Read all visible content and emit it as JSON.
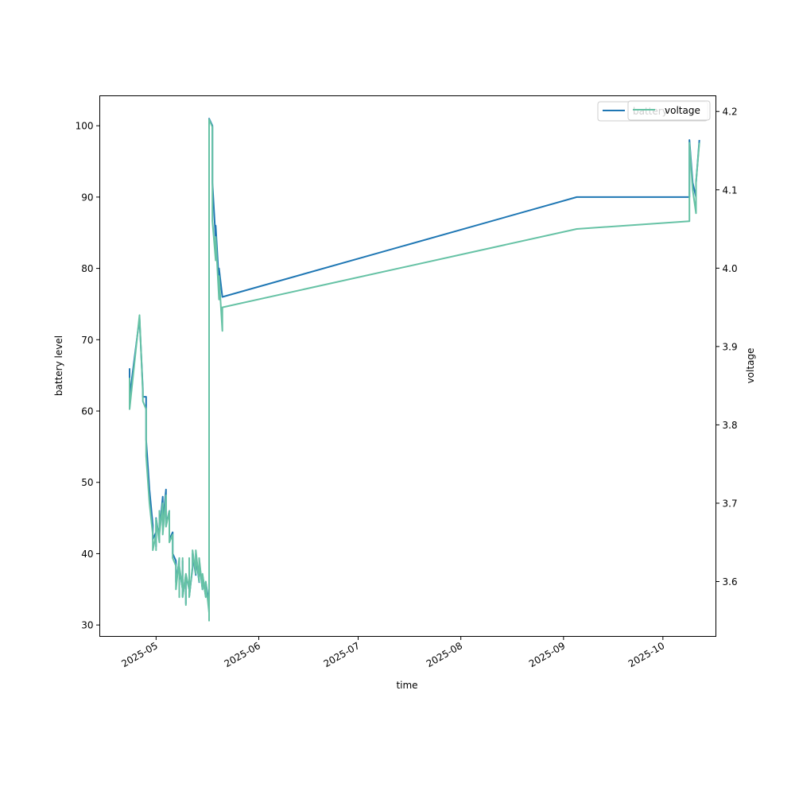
{
  "chart_data": {
    "type": "line",
    "title": "",
    "xlabel": "time",
    "ylabel_left": "battery level",
    "ylabel_right": "voltage",
    "ylim_left": [
      28.4,
      104.2
    ],
    "ylim_right": [
      3.53,
      4.22
    ],
    "yticks_left": [
      30,
      40,
      50,
      60,
      70,
      80,
      90,
      100
    ],
    "yticks_right": [
      "3.6",
      "3.7",
      "3.8",
      "3.9",
      "4.0",
      "4.1",
      "4.2"
    ],
    "xlim": [
      "2025-04-14",
      "2025-10-17"
    ],
    "xticks": [
      {
        "date": "2025-05-01",
        "label": "2025-05"
      },
      {
        "date": "2025-06-01",
        "label": "2025-06"
      },
      {
        "date": "2025-07-01",
        "label": "2025-07"
      },
      {
        "date": "2025-08-01",
        "label": "2025-08"
      },
      {
        "date": "2025-09-01",
        "label": "2025-09"
      },
      {
        "date": "2025-10-01",
        "label": "2025-10"
      }
    ],
    "grid": false,
    "legend_placement": "top-right",
    "series": [
      {
        "name": "battery",
        "axis": "left",
        "color": "#1f77b4",
        "points": [
          [
            "2025-04-23",
            66
          ],
          [
            "2025-04-23",
            62
          ],
          [
            "2025-04-26",
            73
          ],
          [
            "2025-04-27",
            63
          ],
          [
            "2025-04-27",
            62
          ],
          [
            "2025-04-28",
            62
          ],
          [
            "2025-04-28",
            56
          ],
          [
            "2025-04-29",
            49
          ],
          [
            "2025-04-30",
            44
          ],
          [
            "2025-04-30",
            42
          ],
          [
            "2025-05-01",
            43
          ],
          [
            "2025-05-01",
            41
          ],
          [
            "2025-05-01",
            45
          ],
          [
            "2025-05-02",
            42
          ],
          [
            "2025-05-02",
            46
          ],
          [
            "2025-05-02",
            43
          ],
          [
            "2025-05-03",
            48
          ],
          [
            "2025-05-03",
            44
          ],
          [
            "2025-05-04",
            49
          ],
          [
            "2025-05-04",
            44
          ],
          [
            "2025-05-05",
            46
          ],
          [
            "2025-05-05",
            42
          ],
          [
            "2025-05-06",
            43
          ],
          [
            "2025-05-06",
            40
          ],
          [
            "2025-05-07",
            39
          ],
          [
            "2025-05-07",
            36
          ],
          [
            "2025-05-08",
            39
          ],
          [
            "2025-05-08",
            34
          ],
          [
            "2025-05-08",
            38
          ],
          [
            "2025-05-09",
            35
          ],
          [
            "2025-05-09",
            39
          ],
          [
            "2025-05-09",
            34
          ],
          [
            "2025-05-10",
            37
          ],
          [
            "2025-05-10",
            33
          ],
          [
            "2025-05-10",
            37
          ],
          [
            "2025-05-11",
            35
          ],
          [
            "2025-05-11",
            39
          ],
          [
            "2025-05-11",
            34
          ],
          [
            "2025-05-12",
            38
          ],
          [
            "2025-05-12",
            40
          ],
          [
            "2025-05-13",
            37
          ],
          [
            "2025-05-13",
            40
          ],
          [
            "2025-05-14",
            36
          ],
          [
            "2025-05-14",
            39
          ],
          [
            "2025-05-15",
            35
          ],
          [
            "2025-05-15",
            37
          ],
          [
            "2025-05-16",
            34
          ],
          [
            "2025-05-16",
            36
          ],
          [
            "2025-05-17",
            33
          ],
          [
            "2025-05-17",
            32
          ],
          [
            "2025-05-17",
            101
          ],
          [
            "2025-05-18",
            100
          ],
          [
            "2025-05-18",
            92
          ],
          [
            "2025-05-19",
            84
          ],
          [
            "2025-05-19",
            86
          ],
          [
            "2025-05-20",
            78
          ],
          [
            "2025-05-20",
            80
          ],
          [
            "2025-05-21",
            76
          ],
          [
            "2025-09-05",
            90
          ],
          [
            "2025-10-09",
            90
          ],
          [
            "2025-10-09",
            98
          ],
          [
            "2025-10-10",
            92
          ],
          [
            "2025-10-11",
            90
          ],
          [
            "2025-10-11",
            92
          ],
          [
            "2025-10-12",
            98
          ]
        ]
      },
      {
        "name": "voltage",
        "axis": "right",
        "color": "#66c2a5",
        "points": [
          [
            "2025-04-23",
            3.86
          ],
          [
            "2025-04-23",
            3.82
          ],
          [
            "2025-04-26",
            3.94
          ],
          [
            "2025-04-27",
            3.84
          ],
          [
            "2025-04-27",
            3.83
          ],
          [
            "2025-04-28",
            3.82
          ],
          [
            "2025-04-28",
            3.76
          ],
          [
            "2025-04-29",
            3.7
          ],
          [
            "2025-04-30",
            3.66
          ],
          [
            "2025-04-30",
            3.64
          ],
          [
            "2025-05-01",
            3.66
          ],
          [
            "2025-05-01",
            3.64
          ],
          [
            "2025-05-01",
            3.68
          ],
          [
            "2025-05-02",
            3.65
          ],
          [
            "2025-05-02",
            3.69
          ],
          [
            "2025-05-02",
            3.66
          ],
          [
            "2025-05-03",
            3.7
          ],
          [
            "2025-05-03",
            3.66
          ],
          [
            "2025-05-04",
            3.71
          ],
          [
            "2025-05-04",
            3.67
          ],
          [
            "2025-05-05",
            3.69
          ],
          [
            "2025-05-05",
            3.65
          ],
          [
            "2025-05-06",
            3.66
          ],
          [
            "2025-05-06",
            3.63
          ],
          [
            "2025-05-07",
            3.62
          ],
          [
            "2025-05-07",
            3.59
          ],
          [
            "2025-05-08",
            3.63
          ],
          [
            "2025-05-08",
            3.58
          ],
          [
            "2025-05-08",
            3.62
          ],
          [
            "2025-05-09",
            3.59
          ],
          [
            "2025-05-09",
            3.63
          ],
          [
            "2025-05-09",
            3.58
          ],
          [
            "2025-05-10",
            3.61
          ],
          [
            "2025-05-10",
            3.57
          ],
          [
            "2025-05-10",
            3.61
          ],
          [
            "2025-05-11",
            3.59
          ],
          [
            "2025-05-11",
            3.63
          ],
          [
            "2025-05-11",
            3.58
          ],
          [
            "2025-05-12",
            3.62
          ],
          [
            "2025-05-12",
            3.64
          ],
          [
            "2025-05-13",
            3.61
          ],
          [
            "2025-05-13",
            3.64
          ],
          [
            "2025-05-14",
            3.6
          ],
          [
            "2025-05-14",
            3.63
          ],
          [
            "2025-05-15",
            3.59
          ],
          [
            "2025-05-15",
            3.61
          ],
          [
            "2025-05-16",
            3.58
          ],
          [
            "2025-05-16",
            3.6
          ],
          [
            "2025-05-17",
            3.56
          ],
          [
            "2025-05-17",
            3.55
          ],
          [
            "2025-05-17",
            4.19
          ],
          [
            "2025-05-18",
            4.18
          ],
          [
            "2025-05-18",
            4.06
          ],
          [
            "2025-05-19",
            4.01
          ],
          [
            "2025-05-19",
            4.04
          ],
          [
            "2025-05-20",
            3.96
          ],
          [
            "2025-05-20",
            3.99
          ],
          [
            "2025-05-21",
            3.92
          ],
          [
            "2025-05-21",
            3.95
          ],
          [
            "2025-09-05",
            4.05
          ],
          [
            "2025-10-09",
            4.06
          ],
          [
            "2025-10-09",
            4.16
          ],
          [
            "2025-10-10",
            4.1
          ],
          [
            "2025-10-11",
            4.07
          ],
          [
            "2025-10-11",
            4.11
          ],
          [
            "2025-10-12",
            4.16
          ]
        ]
      }
    ],
    "legend": [
      {
        "label": "battery",
        "color": "#1f77b4"
      },
      {
        "label": "voltage",
        "color": "#66c2a5"
      }
    ]
  }
}
